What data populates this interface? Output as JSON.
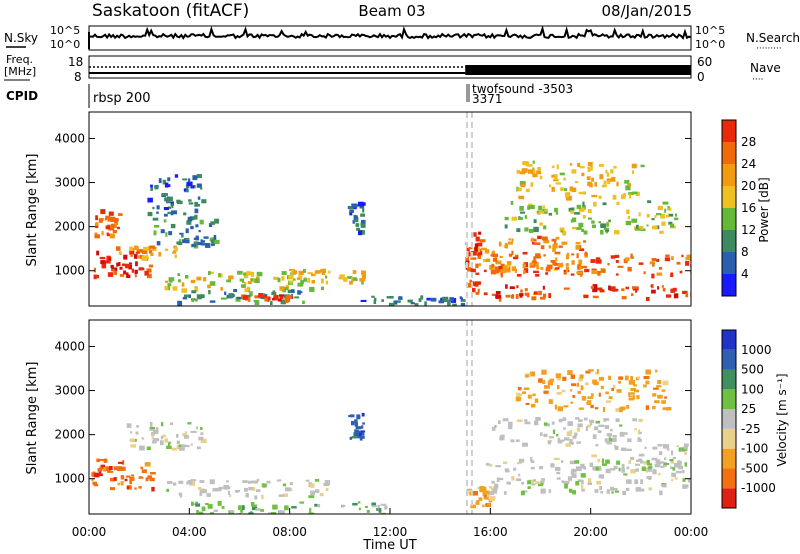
{
  "header": {
    "station": "Saskatoon (fitACF)",
    "beam": "Beam 03",
    "date": "08/Jan/2015"
  },
  "strip_labels": {
    "nsky": "N.Sky",
    "nsearch": "N.Search",
    "nsearch_dots": "·········",
    "freq_line1": "Freq.",
    "freq_line2": "[MHz]",
    "nave": "Nave",
    "nave_dots": "····",
    "cpid": "CPID",
    "cpid_primary": "rbsp 200",
    "cpid_secondary": "twofsound -3503",
    "cpid_secondary_2": "3371"
  },
  "colors": {
    "power_scale": [
      "#1a1aff",
      "#2a5fae",
      "#3d8a5f",
      "#66b83a",
      "#f0c020",
      "#f29a10",
      "#f06a0a",
      "#e82a0a",
      "#d10a0a"
    ],
    "velocity_scale": [
      "#1f33c7",
      "#2f5fb0",
      "#3f8f5f",
      "#6fc040",
      "#bfbfbf",
      "#e8d28a",
      "#f2a020",
      "#f27010",
      "#e02010"
    ],
    "dashed_marker": "#c8c8c8"
  },
  "chart_data": [
    {
      "type": "line",
      "panel": "noise",
      "left_axis": {
        "label": "N.Sky",
        "ticks": [
          "10^5",
          "10^0"
        ]
      },
      "right_axis": {
        "label": "N.Search",
        "ticks": [
          "10^5",
          "10^0"
        ]
      },
      "x": {
        "range_hours": [
          0,
          24
        ]
      },
      "note": "noise level roughly constant with small spikes"
    },
    {
      "type": "line",
      "panel": "frequency",
      "left_axis": {
        "label": "Freq. [MHz]",
        "ticks": [
          18,
          8
        ],
        "range": [
          8,
          18
        ]
      },
      "right_axis": {
        "label": "Nave",
        "ticks": [
          60,
          0
        ],
        "range": [
          0,
          60
        ]
      },
      "segments": [
        {
          "x_start": 0,
          "x_end": 15,
          "mode": "sparse"
        },
        {
          "x_start": 15,
          "x_end": 24,
          "mode": "dense"
        }
      ]
    },
    {
      "type": "heatmap",
      "panel": "power",
      "ylabel": "Slant Range [km]",
      "yticks": [
        1000,
        2000,
        3000,
        4000
      ],
      "ylim": [
        200,
        4600
      ],
      "xlim": [
        0,
        24
      ],
      "colorbar": {
        "label": "Power [dB]",
        "ticks": [
          4,
          8,
          12,
          16,
          20,
          24,
          28
        ],
        "range": [
          0,
          30
        ]
      },
      "blobs": [
        {
          "h0": 0.0,
          "h1": 2.5,
          "r0": 900,
          "r1": 1500,
          "v": 26
        },
        {
          "h0": 0.2,
          "h1": 1.2,
          "r0": 1800,
          "r1": 2400,
          "v": 22
        },
        {
          "h0": 1.0,
          "h1": 3.5,
          "r0": 1300,
          "r1": 1600,
          "v": 18
        },
        {
          "h0": 2.5,
          "h1": 5.0,
          "r0": 1600,
          "r1": 2200,
          "v": 8
        },
        {
          "h0": 2.3,
          "h1": 4.5,
          "r0": 2200,
          "r1": 3200,
          "v": 6
        },
        {
          "h0": 3.0,
          "h1": 9.5,
          "r0": 600,
          "r1": 1000,
          "v": 14
        },
        {
          "h0": 3.5,
          "h1": 8.5,
          "r0": 300,
          "r1": 600,
          "v": 8
        },
        {
          "h0": 6.0,
          "h1": 8.0,
          "r0": 350,
          "r1": 500,
          "v": 24
        },
        {
          "h0": 7.5,
          "h1": 11.0,
          "r0": 750,
          "r1": 1050,
          "v": 16
        },
        {
          "h0": 10.3,
          "h1": 10.9,
          "r0": 1900,
          "r1": 2600,
          "v": 6
        },
        {
          "h0": 10.8,
          "h1": 15.0,
          "r0": 250,
          "r1": 450,
          "v": 6
        },
        {
          "h0": 15.0,
          "h1": 15.8,
          "r0": 500,
          "r1": 1900,
          "v": 24
        },
        {
          "h0": 15.5,
          "h1": 20.0,
          "r0": 1000,
          "r1": 1800,
          "v": 20
        },
        {
          "h0": 16.0,
          "h1": 24.0,
          "r0": 900,
          "r1": 1400,
          "v": 22
        },
        {
          "h0": 16.0,
          "h1": 24.0,
          "r0": 400,
          "r1": 700,
          "v": 24
        },
        {
          "h0": 16.5,
          "h1": 23.5,
          "r0": 1900,
          "r1": 2600,
          "v": 12
        },
        {
          "h0": 17.0,
          "h1": 22.0,
          "r0": 2700,
          "r1": 3500,
          "v": 16
        }
      ]
    },
    {
      "type": "heatmap",
      "panel": "velocity",
      "ylabel": "Slant Range [km]",
      "yticks": [
        1000,
        2000,
        3000,
        4000
      ],
      "ylim": [
        200,
        4600
      ],
      "xlim": [
        0,
        24
      ],
      "xlabel": "Time UT",
      "xticks": [
        "00:00",
        "04:00",
        "08:00",
        "12:00",
        "16:00",
        "20:00",
        "00:00"
      ],
      "colorbar": {
        "label": "Velocity [m s⁻¹]",
        "ticks": [
          1000,
          500,
          100,
          25,
          -25,
          -100,
          -500,
          -1000
        ]
      },
      "blobs": [
        {
          "h0": 0.0,
          "h1": 2.5,
          "r0": 800,
          "r1": 1500,
          "c": 7
        },
        {
          "h0": 1.5,
          "h1": 4.5,
          "r0": 1700,
          "r1": 2300,
          "c": 4
        },
        {
          "h0": 3.0,
          "h1": 9.5,
          "r0": 600,
          "r1": 1000,
          "c": 4
        },
        {
          "h0": 4.0,
          "h1": 12.0,
          "r0": 200,
          "r1": 500,
          "c": 3
        },
        {
          "h0": 10.3,
          "h1": 10.9,
          "r0": 1900,
          "r1": 2500,
          "c": 1
        },
        {
          "h0": 15.0,
          "h1": 16.0,
          "r0": 400,
          "r1": 900,
          "c": 6
        },
        {
          "h0": 15.8,
          "h1": 24.0,
          "r0": 700,
          "r1": 1500,
          "c": 4
        },
        {
          "h0": 16.0,
          "h1": 22.0,
          "r0": 1800,
          "r1": 2400,
          "c": 4
        },
        {
          "h0": 17.0,
          "h1": 23.0,
          "r0": 2600,
          "r1": 3500,
          "c": 6
        },
        {
          "h0": 20.0,
          "h1": 24.0,
          "r0": 1200,
          "r1": 1800,
          "c": 4
        }
      ]
    }
  ]
}
